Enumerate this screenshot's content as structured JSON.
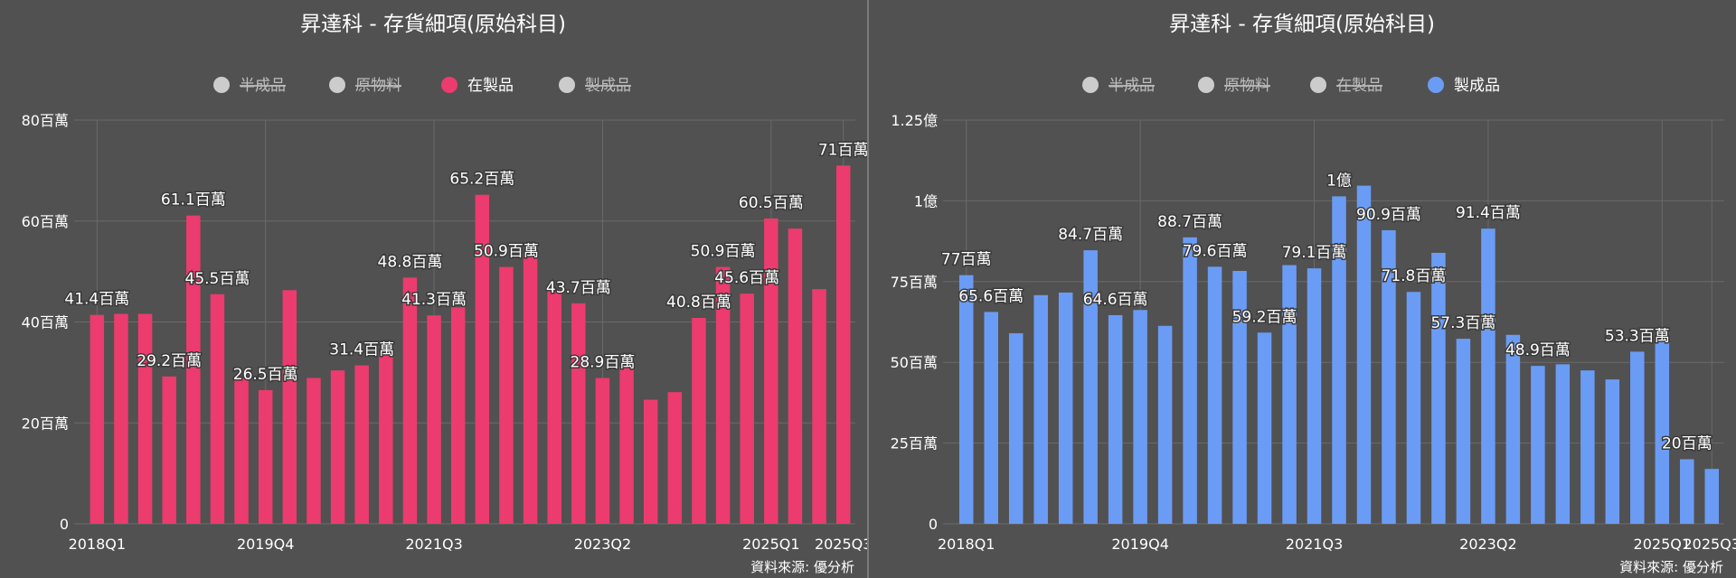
{
  "source_label": "資料來源: 優分析",
  "colors": {
    "background": "#515151",
    "grid": "#6a6a6a",
    "axis_text": "#ffffff",
    "legend_hidden": "#cccccc",
    "legend_hidden_text": "#bdbdbd"
  },
  "chart_data": [
    {
      "type": "bar",
      "title": "昇達科 - 存貨細項(原始科目)",
      "legend": [
        {
          "name": "半成品",
          "color": "#cccccc",
          "active": false
        },
        {
          "name": "原物料",
          "color": "#cccccc",
          "active": false
        },
        {
          "name": "在製品",
          "color": "#ec3b6e",
          "active": true
        },
        {
          "name": "製成品",
          "color": "#cccccc",
          "active": false
        }
      ],
      "series_name": "在製品",
      "color": "#ec3b6e",
      "unit": "百萬",
      "x_tick_labels": [
        "2018Q1",
        "2019Q4",
        "2021Q3",
        "2023Q2",
        "2025Q1",
        "2025Q3"
      ],
      "y_tick_labels": [
        "0",
        "20百萬",
        "40百萬",
        "60百萬",
        "80百萬"
      ],
      "ylim": [
        0,
        80
      ],
      "values": [
        41.4,
        41.6,
        41.6,
        29.2,
        61.1,
        45.5,
        28.9,
        26.5,
        46.3,
        28.9,
        30.4,
        31.4,
        33.9,
        48.8,
        41.3,
        42.9,
        65.2,
        50.9,
        53.5,
        46.3,
        43.7,
        28.9,
        31.1,
        24.6,
        26.1,
        40.8,
        50.9,
        45.6,
        60.5,
        58.5,
        46.5,
        71.0
      ],
      "data_labels": [
        {
          "i": 0,
          "text": "41.4百萬"
        },
        {
          "i": 3,
          "text": "29.2百萬"
        },
        {
          "i": 4,
          "text": "61.1百萬"
        },
        {
          "i": 5,
          "text": "45.5百萬"
        },
        {
          "i": 7,
          "text": "26.5百萬"
        },
        {
          "i": 11,
          "text": "31.4百萬"
        },
        {
          "i": 13,
          "text": "48.8百萬"
        },
        {
          "i": 14,
          "text": "41.3百萬"
        },
        {
          "i": 16,
          "text": "65.2百萬"
        },
        {
          "i": 17,
          "text": "50.9百萬"
        },
        {
          "i": 20,
          "text": "43.7百萬"
        },
        {
          "i": 21,
          "text": "28.9百萬"
        },
        {
          "i": 25,
          "text": "40.8百萬"
        },
        {
          "i": 26,
          "text": "50.9百萬"
        },
        {
          "i": 27,
          "text": "45.6百萬"
        },
        {
          "i": 28,
          "text": "60.5百萬"
        },
        {
          "i": 31,
          "text": "71百萬"
        }
      ]
    },
    {
      "type": "bar",
      "title": "昇達科 - 存貨細項(原始科目)",
      "legend": [
        {
          "name": "半成品",
          "color": "#cccccc",
          "active": false
        },
        {
          "name": "原物料",
          "color": "#cccccc",
          "active": false
        },
        {
          "name": "在製品",
          "color": "#cccccc",
          "active": false
        },
        {
          "name": "製成品",
          "color": "#6b9cf5",
          "active": true
        }
      ],
      "series_name": "製成品",
      "color": "#6b9cf5",
      "unit": "百萬",
      "x_tick_labels": [
        "2018Q1",
        "2019Q4",
        "2021Q3",
        "2023Q2",
        "2025Q1",
        "2025Q3"
      ],
      "y_tick_labels": [
        "0",
        "25百萬",
        "50百萬",
        "75百萬",
        "1億",
        "1.25億"
      ],
      "ylim": [
        0,
        125
      ],
      "values": [
        77.0,
        65.6,
        59.0,
        70.8,
        71.6,
        84.7,
        64.6,
        66.2,
        61.3,
        88.7,
        79.6,
        78.3,
        59.2,
        80.1,
        79.1,
        101.4,
        104.7,
        90.9,
        71.8,
        83.9,
        57.3,
        91.4,
        58.5,
        48.9,
        49.4,
        47.5,
        44.7,
        53.3,
        57.0,
        20.0,
        17.0
      ],
      "data_labels": [
        {
          "i": 0,
          "text": "77百萬"
        },
        {
          "i": 1,
          "text": "65.6百萬"
        },
        {
          "i": 5,
          "text": "84.7百萬"
        },
        {
          "i": 6,
          "text": "64.6百萬"
        },
        {
          "i": 9,
          "text": "88.7百萬"
        },
        {
          "i": 10,
          "text": "79.6百萬"
        },
        {
          "i": 12,
          "text": "59.2百萬"
        },
        {
          "i": 14,
          "text": "79.1百萬"
        },
        {
          "i": 15,
          "text": "1億"
        },
        {
          "i": 17,
          "text": "90.9百萬"
        },
        {
          "i": 18,
          "text": "71.8百萬"
        },
        {
          "i": 20,
          "text": "57.3百萬"
        },
        {
          "i": 21,
          "text": "91.4百萬"
        },
        {
          "i": 23,
          "text": "48.9百萬"
        },
        {
          "i": 27,
          "text": "53.3百萬"
        },
        {
          "i": 29,
          "text": "20百萬"
        }
      ]
    }
  ]
}
